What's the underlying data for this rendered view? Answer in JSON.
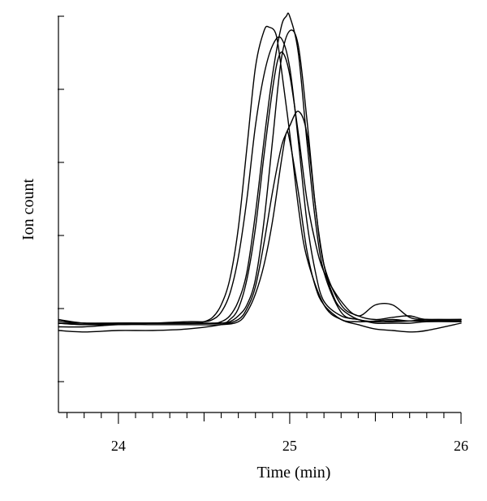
{
  "chart_data": {
    "type": "line",
    "title": "",
    "xlabel": "Time (min)",
    "ylabel": "Ion count",
    "xlim": [
      23.65,
      26.0
    ],
    "ylim": [
      0,
      5
    ],
    "x_major_ticks": [
      24,
      25,
      26
    ],
    "x_tick_labels": [
      "24",
      "25",
      "26"
    ],
    "x_minor_step": 0.1,
    "y_ticks": [
      0,
      1,
      2,
      3,
      4,
      5
    ],
    "y_tick_labels_shown": false,
    "grid": false,
    "legend": "none",
    "series": [
      {
        "x": [
          23.65,
          23.8,
          24.0,
          24.2,
          24.35,
          24.45,
          24.5,
          24.55,
          24.6,
          24.65,
          24.7,
          24.75,
          24.8,
          24.85,
          24.88,
          24.92,
          24.95,
          25.0,
          25.05,
          25.1,
          25.2,
          25.3,
          25.4,
          25.5,
          25.6,
          25.7,
          25.8,
          26.0
        ],
        "y": [
          0.85,
          0.8,
          0.78,
          0.8,
          0.8,
          0.8,
          0.82,
          0.88,
          1.05,
          1.4,
          2.1,
          3.2,
          4.3,
          4.8,
          4.85,
          4.75,
          4.3,
          3.4,
          2.4,
          1.7,
          1.05,
          0.85,
          0.82,
          0.83,
          0.85,
          0.83,
          0.83,
          0.83
        ]
      },
      {
        "x": [
          23.65,
          23.8,
          24.0,
          24.2,
          24.4,
          24.55,
          24.6,
          24.65,
          24.7,
          24.75,
          24.8,
          24.85,
          24.9,
          24.95,
          24.98,
          25.0,
          25.05,
          25.1,
          25.15,
          25.2,
          25.3,
          25.4,
          25.5,
          25.6,
          25.7,
          25.8,
          26.0
        ],
        "y": [
          0.8,
          0.78,
          0.8,
          0.8,
          0.8,
          0.8,
          0.82,
          0.9,
          1.1,
          1.5,
          2.3,
          3.3,
          4.2,
          4.85,
          5.0,
          5.0,
          4.5,
          3.3,
          2.2,
          1.5,
          0.95,
          0.85,
          0.82,
          0.82,
          0.83,
          0.85,
          0.85
        ]
      },
      {
        "x": [
          23.65,
          23.8,
          24.0,
          24.2,
          24.4,
          24.6,
          24.65,
          24.7,
          24.75,
          24.8,
          24.85,
          24.9,
          24.95,
          25.0,
          25.05,
          25.1,
          25.15,
          25.2,
          25.25,
          25.3,
          25.4,
          25.5,
          25.6,
          25.7,
          25.8,
          26.0
        ],
        "y": [
          0.83,
          0.8,
          0.8,
          0.8,
          0.8,
          0.8,
          0.82,
          0.9,
          1.05,
          1.4,
          2.2,
          3.3,
          4.4,
          4.8,
          4.6,
          3.6,
          2.4,
          1.6,
          1.2,
          1.0,
          0.85,
          0.82,
          0.83,
          0.83,
          0.83,
          0.83
        ]
      },
      {
        "x": [
          23.65,
          23.8,
          24.0,
          24.2,
          24.4,
          24.6,
          24.65,
          24.7,
          24.75,
          24.8,
          24.85,
          24.9,
          24.93,
          24.96,
          25.0,
          25.05,
          25.1,
          25.15,
          25.2,
          25.3,
          25.4,
          25.5,
          25.6,
          25.7,
          25.8,
          26.0
        ],
        "y": [
          0.8,
          0.8,
          0.8,
          0.8,
          0.8,
          0.8,
          0.85,
          1.0,
          1.4,
          2.1,
          3.1,
          4.0,
          4.4,
          4.5,
          4.2,
          3.4,
          2.5,
          1.9,
          1.5,
          1.1,
          0.9,
          1.05,
          1.05,
          0.88,
          0.85,
          0.85
        ]
      },
      {
        "x": [
          23.65,
          23.8,
          24.0,
          24.2,
          24.4,
          24.6,
          24.7,
          24.75,
          24.8,
          24.85,
          24.9,
          24.95,
          24.98,
          25.0,
          25.05,
          25.1,
          25.15,
          25.2,
          25.3,
          25.4,
          25.5,
          25.6,
          25.7,
          25.8,
          26.0
        ],
        "y": [
          0.7,
          0.68,
          0.7,
          0.7,
          0.72,
          0.78,
          0.85,
          1.0,
          1.3,
          1.9,
          2.6,
          3.2,
          3.4,
          3.5,
          3.7,
          3.4,
          2.4,
          1.6,
          1.05,
          0.9,
          0.85,
          0.88,
          0.9,
          0.85,
          0.85
        ]
      },
      {
        "x": [
          23.65,
          23.8,
          24.0,
          24.2,
          24.4,
          24.6,
          24.7,
          24.75,
          24.8,
          24.85,
          24.9,
          24.95,
          24.98,
          25.0,
          25.05,
          25.1,
          25.15,
          25.2,
          25.3,
          25.4,
          25.5,
          25.6,
          25.7,
          25.8,
          26.0
        ],
        "y": [
          0.75,
          0.75,
          0.78,
          0.78,
          0.78,
          0.78,
          0.82,
          0.95,
          1.2,
          1.6,
          2.2,
          3.0,
          3.4,
          3.3,
          2.6,
          1.8,
          1.3,
          1.05,
          0.85,
          0.78,
          0.72,
          0.7,
          0.68,
          0.7,
          0.8
        ]
      },
      {
        "x": [
          23.65,
          23.8,
          24.0,
          24.2,
          24.4,
          24.5,
          24.55,
          24.6,
          24.65,
          24.7,
          24.75,
          24.8,
          24.85,
          24.9,
          24.95,
          25.0,
          25.05,
          25.1,
          25.15,
          25.2,
          25.3,
          25.4,
          25.5,
          25.6,
          25.7,
          25.8,
          26.0
        ],
        "y": [
          0.8,
          0.78,
          0.78,
          0.8,
          0.82,
          0.82,
          0.85,
          0.95,
          1.2,
          1.7,
          2.5,
          3.5,
          4.2,
          4.6,
          4.7,
          4.3,
          3.3,
          2.2,
          1.5,
          1.1,
          0.9,
          0.85,
          0.8,
          0.8,
          0.8,
          0.82,
          0.82
        ]
      }
    ]
  }
}
